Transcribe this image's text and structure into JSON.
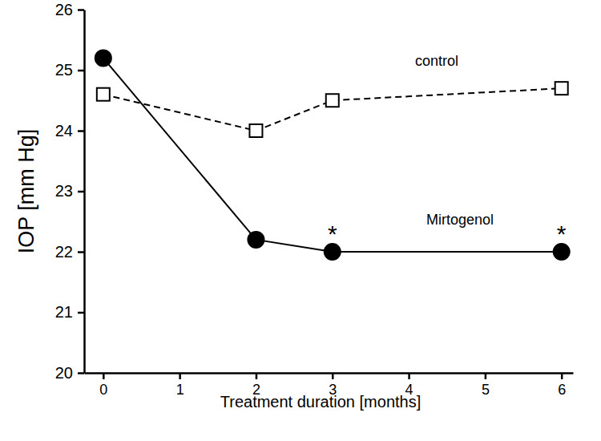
{
  "chart_data": {
    "type": "line",
    "x_label": "Treatment duration [months]",
    "y_label": "IOP [mm Hg]",
    "x": [
      0,
      2,
      3,
      6
    ],
    "series": [
      {
        "name": "control",
        "color": "#000000",
        "marker": "square-open",
        "line_style": "dashed",
        "values": [
          24.6,
          24.0,
          24.5,
          24.7
        ]
      },
      {
        "name": "Mirtogenol",
        "color": "#000000",
        "marker": "circle",
        "line_style": "solid",
        "values": [
          25.2,
          22.2,
          22.0,
          22.0
        ]
      }
    ],
    "xlim": [
      -0.25,
      6.15
    ],
    "xticks": [
      0,
      1,
      2,
      3,
      4,
      5,
      6
    ],
    "ylim": [
      20,
      26
    ],
    "yticks": [
      20,
      21,
      22,
      23,
      24,
      25,
      26
    ],
    "grid": false,
    "annotations": [
      {
        "text": "*",
        "x": 3,
        "y": 22.35
      },
      {
        "text": "*",
        "x": 6,
        "y": 22.35
      }
    ]
  }
}
